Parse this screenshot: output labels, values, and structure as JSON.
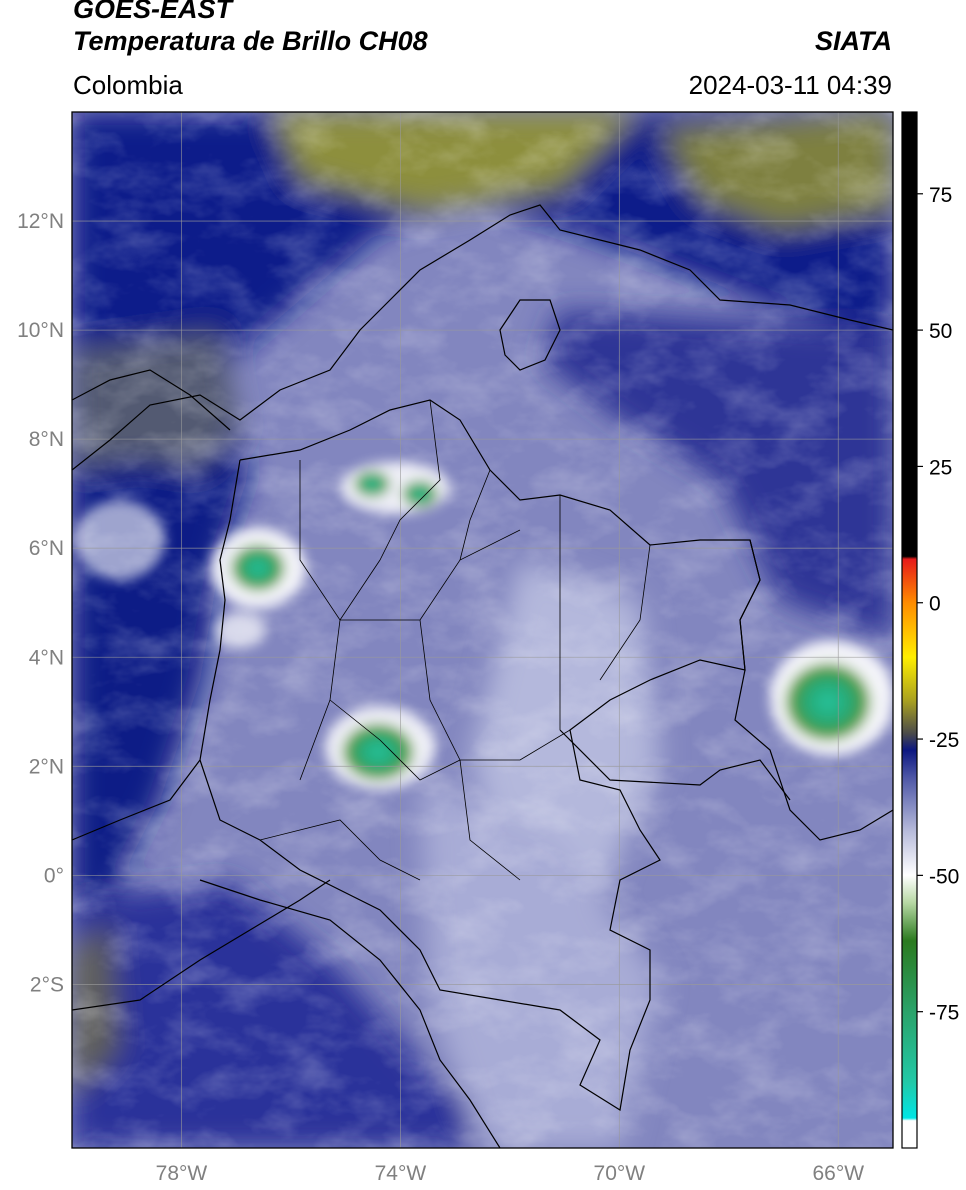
{
  "header": {
    "satellite": "GOES-EAST",
    "product": "Temperatura de Brillo CH08",
    "organization": "SIATA",
    "region": "Colombia",
    "datetime": "2024-03-11 04:39"
  },
  "map": {
    "lon_range": [
      -80.0,
      -65.0
    ],
    "lat_range": [
      -5.0,
      14.0
    ],
    "lon_ticks": [
      {
        "value": -78,
        "label": "78°W"
      },
      {
        "value": -74,
        "label": "74°W"
      },
      {
        "value": -70,
        "label": "70°W"
      },
      {
        "value": -66,
        "label": "66°W"
      }
    ],
    "lat_ticks": [
      {
        "value": 12,
        "label": "12°N"
      },
      {
        "value": 10,
        "label": "10°N"
      },
      {
        "value": 8,
        "label": "8°N"
      },
      {
        "value": 6,
        "label": "6°N"
      },
      {
        "value": 4,
        "label": "4°N"
      },
      {
        "value": 2,
        "label": "2°N"
      },
      {
        "value": 0,
        "label": "0°"
      },
      {
        "value": -2,
        "label": "2°S"
      }
    ],
    "gridlines": true,
    "colorbar": {
      "range": [
        -100,
        90
      ],
      "ticks": [
        {
          "value": 75,
          "label": "75"
        },
        {
          "value": 50,
          "label": "50"
        },
        {
          "value": 25,
          "label": "25"
        },
        {
          "value": 0,
          "label": "0"
        },
        {
          "value": -25,
          "label": "-25"
        },
        {
          "value": -50,
          "label": "-50"
        },
        {
          "value": -75,
          "label": "-75"
        }
      ],
      "stops": [
        {
          "value": -100,
          "color": "#ffffff"
        },
        {
          "value": -95,
          "color": "#ffffff"
        },
        {
          "value": -94.5,
          "color": "#00e5e5"
        },
        {
          "value": -88,
          "color": "#22c9a8"
        },
        {
          "value": -75,
          "color": "#2aa36a"
        },
        {
          "value": -62,
          "color": "#2b7a1f"
        },
        {
          "value": -55,
          "color": "#b7d8a4"
        },
        {
          "value": -50,
          "color": "#ffffff"
        },
        {
          "value": -42,
          "color": "#b8bcdb"
        },
        {
          "value": -32,
          "color": "#4d56a6"
        },
        {
          "value": -27,
          "color": "#0c1780"
        },
        {
          "value": -24,
          "color": "#4a4a4a"
        },
        {
          "value": -18,
          "color": "#a8a020"
        },
        {
          "value": -10,
          "color": "#ffee00"
        },
        {
          "value": 0,
          "color": "#ff8c00"
        },
        {
          "value": 8,
          "color": "#e61a1a"
        },
        {
          "value": 8.5,
          "color": "#000000"
        },
        {
          "value": 90,
          "color": "#000000"
        }
      ]
    }
  }
}
